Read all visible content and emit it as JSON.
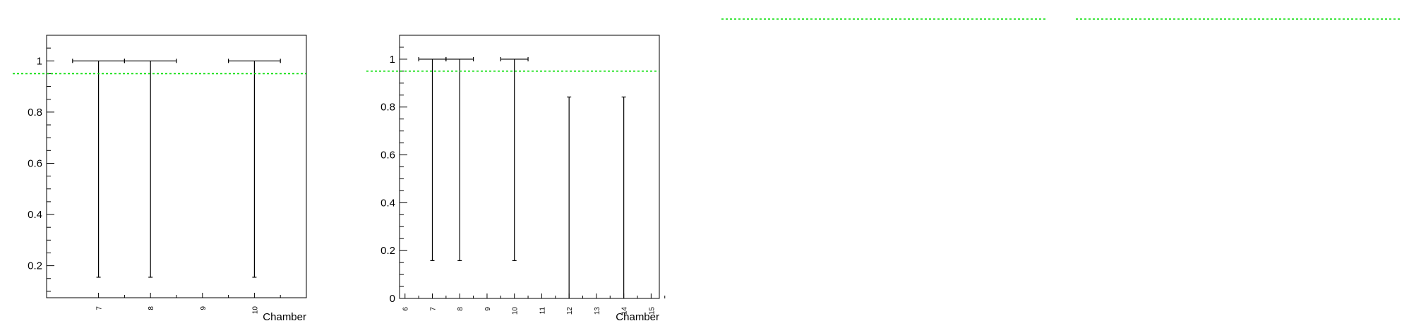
{
  "colors": {
    "reference_line": "#00dd00",
    "frame": "#000000",
    "error_bar": "#000000"
  },
  "reference_level": 0.95,
  "chart_data": [
    {
      "type": "scatter",
      "title": "",
      "xlabel": "Chamber",
      "ylabel": "",
      "xlim": [
        6,
        11
      ],
      "ylim": [
        0.075,
        1.1
      ],
      "x_ticks_labeled": [
        "7",
        "8",
        "9",
        "10"
      ],
      "y_ticks_labeled": [
        "0.2",
        "0.4",
        "0.6",
        "0.8",
        "1"
      ],
      "reference_line": 0.95,
      "series": [
        {
          "points": [
            {
              "x": 7,
              "y": 1.0,
              "y_low": 0.155,
              "y_high": 1.0,
              "x_err": 0.5
            },
            {
              "x": 8,
              "y": 1.0,
              "y_low": 0.155,
              "y_high": 1.0,
              "x_err": 0.5
            },
            {
              "x": 10,
              "y": 1.0,
              "y_low": 0.155,
              "y_high": 1.0,
              "x_err": 0.5
            }
          ]
        }
      ]
    },
    {
      "type": "scatter",
      "title": "",
      "xlabel": "Chamber",
      "ylabel": "",
      "xlim": [
        5.8,
        15.3
      ],
      "ylim": [
        0,
        1.1
      ],
      "x_ticks_labeled": [
        "6",
        "7",
        "8",
        "9",
        "10",
        "11",
        "12",
        "13",
        "14",
        "15"
      ],
      "y_ticks_labeled": [
        "0",
        "0.2",
        "0.4",
        "0.6",
        "0.8",
        "1"
      ],
      "reference_line": 0.95,
      "series": [
        {
          "points": [
            {
              "x": 7,
              "y": 1.0,
              "y_low": 0.158,
              "y_high": 1.0,
              "x_err": 0.5
            },
            {
              "x": 8,
              "y": 1.0,
              "y_low": 0.158,
              "y_high": 1.0,
              "x_err": 0.5
            },
            {
              "x": 10,
              "y": 1.0,
              "y_low": 0.158,
              "y_high": 1.0,
              "x_err": 0.5
            },
            {
              "x": 12,
              "y": 0.0,
              "y_low": 0.0,
              "y_high": 0.842,
              "x_err": 0.5
            },
            {
              "x": 14,
              "y": 0.0,
              "y_low": 0.0,
              "y_high": 0.842,
              "x_err": 0.5
            }
          ]
        }
      ]
    },
    {
      "type": "scatter",
      "title": "",
      "xlabel": "",
      "ylabel": "",
      "reference_line": 0.95,
      "series": []
    },
    {
      "type": "scatter",
      "title": "",
      "xlabel": "",
      "ylabel": "",
      "reference_line": 0.95,
      "series": []
    }
  ]
}
